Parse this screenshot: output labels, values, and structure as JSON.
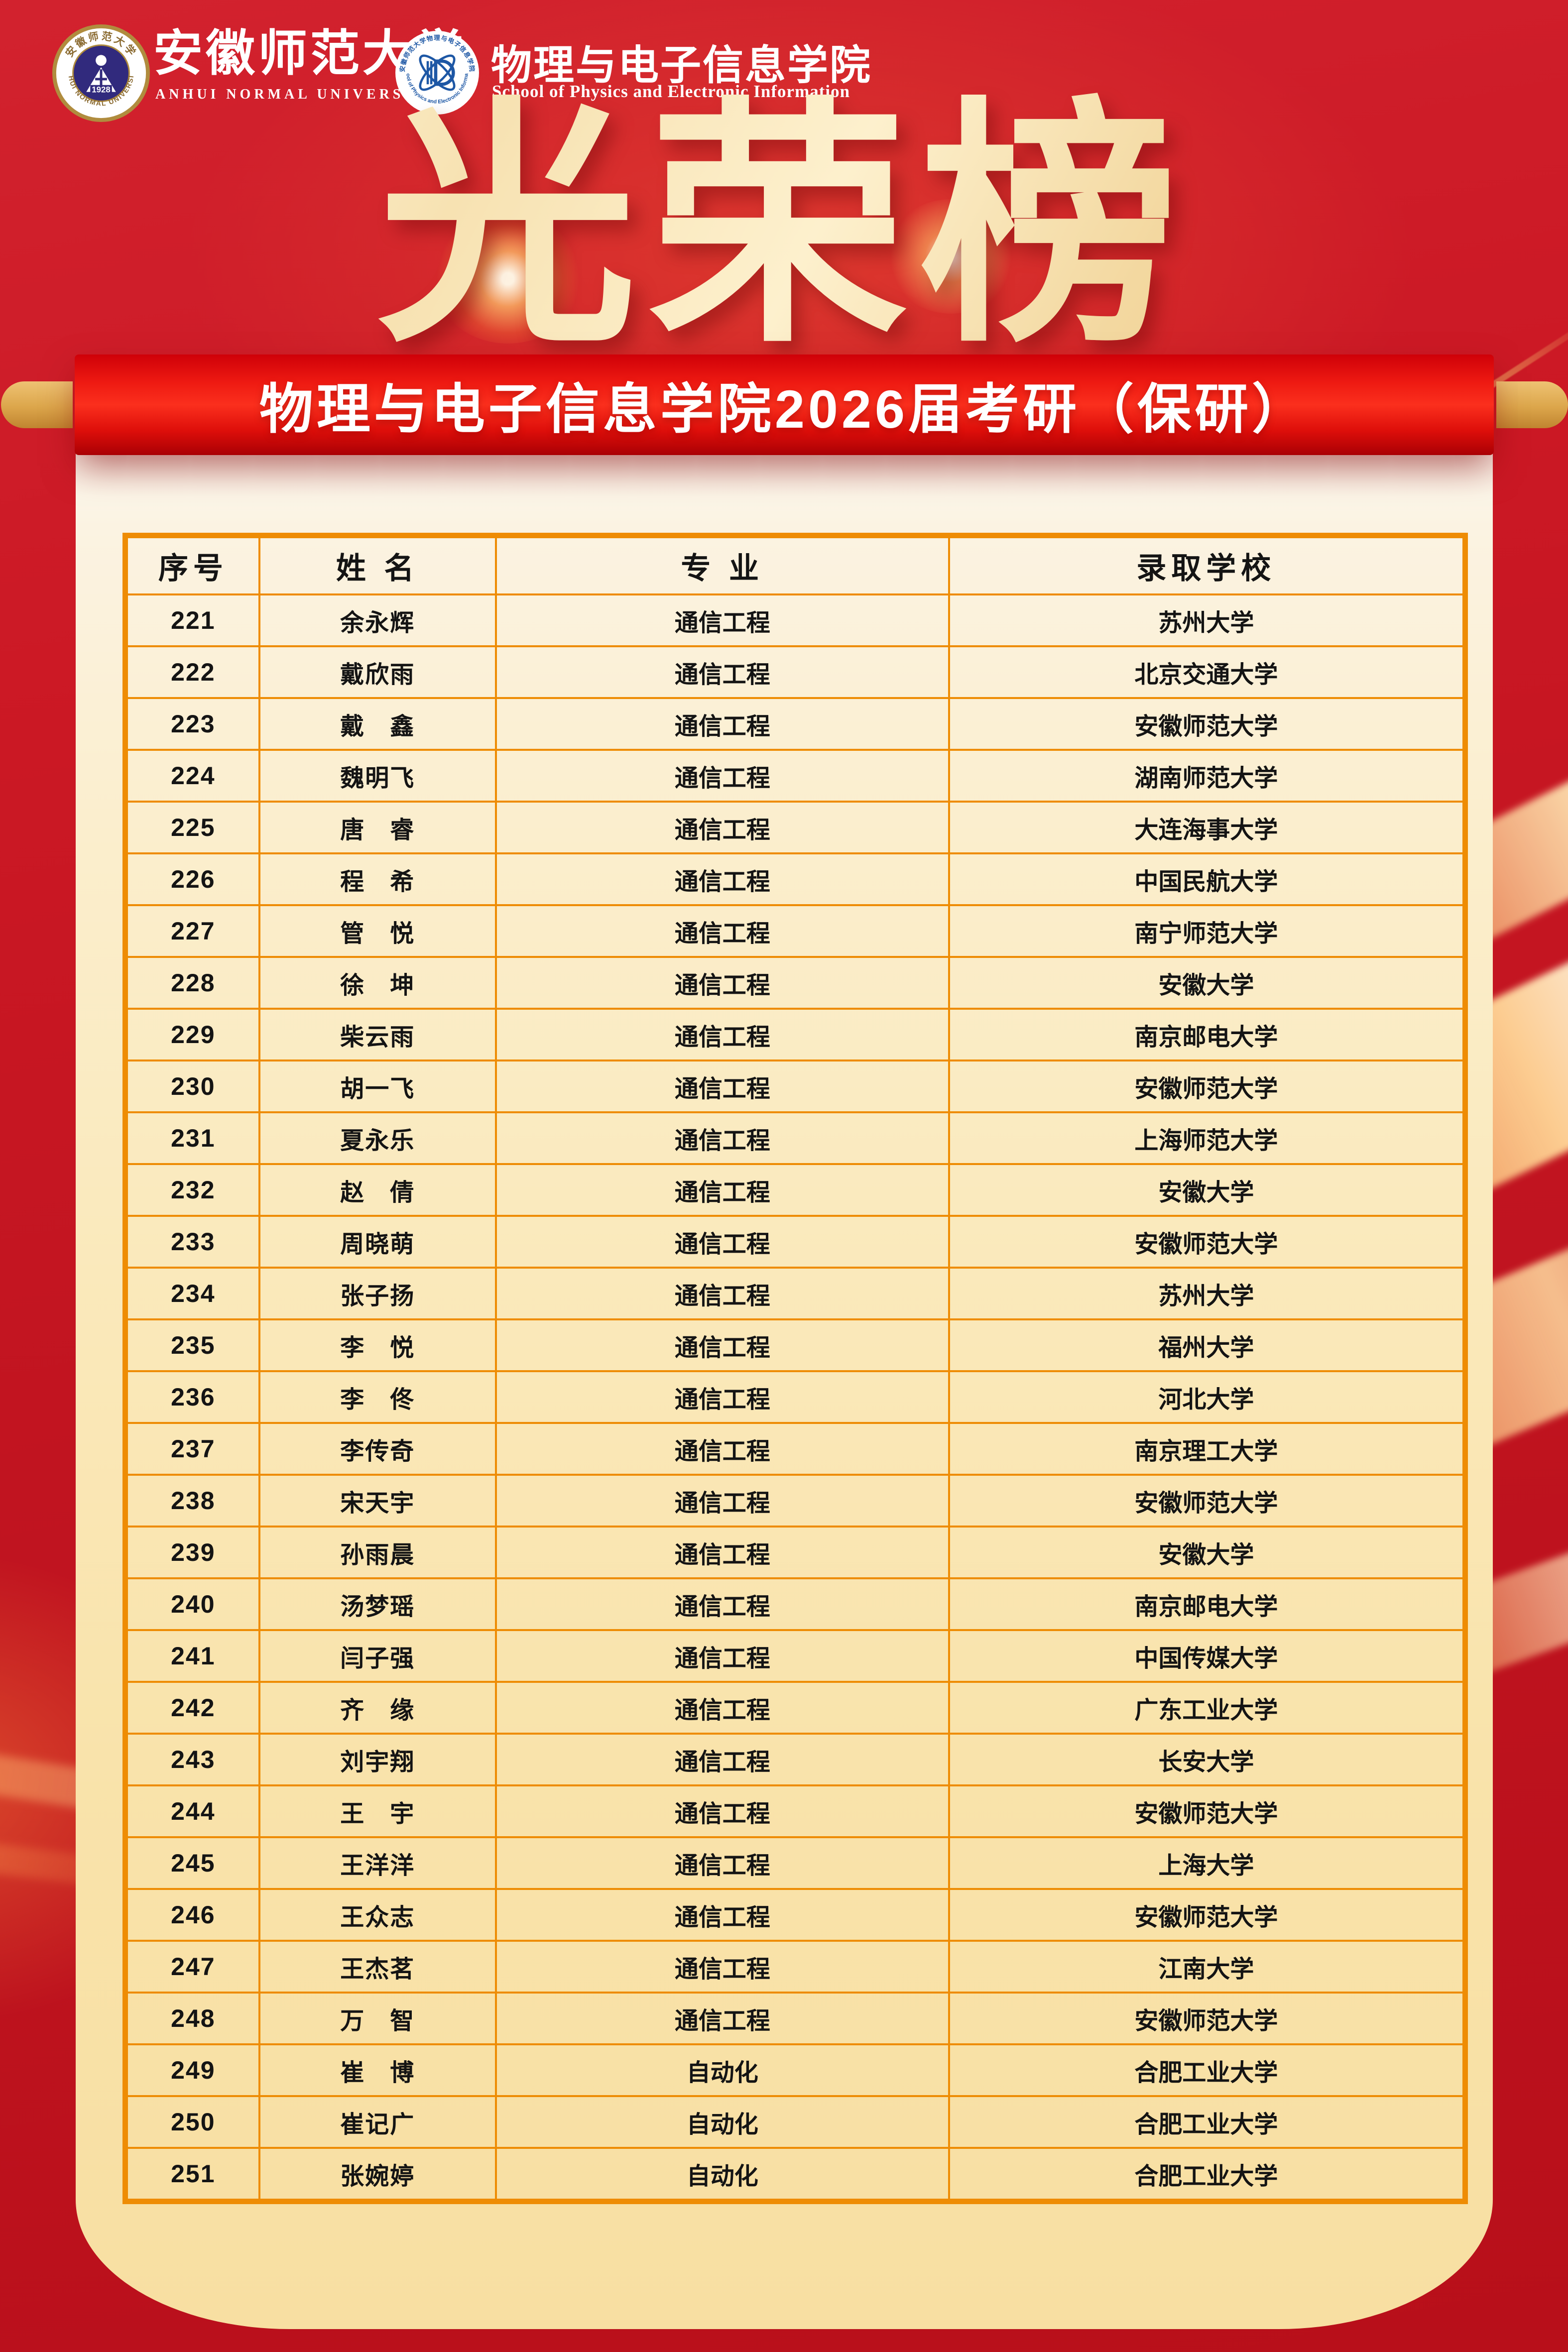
{
  "header": {
    "university_seal": {
      "ring_top": "安徽师范大学",
      "ring_bottom": "ANHUI NORMAL UNIVERSITY",
      "year": "1928"
    },
    "university_name_cn": "安徽师范大学",
    "university_name_en": "ANHUI NORMAL UNIVERSITY",
    "college_logo": {
      "ring_top": "安徽师范大学物理与电子信息学院",
      "ring_bottom": "School of Physics and Electronic Information",
      "monogram": "P"
    },
    "college_name_cn": "物理与电子信息学院",
    "college_name_en": "School of Physics and Electronic Information"
  },
  "title": {
    "text": "光荣榜"
  },
  "banner": {
    "text": "物理与电子信息学院2026届考研（保研）"
  },
  "table": {
    "columns": [
      "序号",
      "姓 名",
      "专 业",
      "录取学校"
    ],
    "rows": [
      [
        "221",
        "余永辉",
        "通信工程",
        "苏州大学"
      ],
      [
        "222",
        "戴欣雨",
        "通信工程",
        "北京交通大学"
      ],
      [
        "223",
        "戴　鑫",
        "通信工程",
        "安徽师范大学"
      ],
      [
        "224",
        "魏明飞",
        "通信工程",
        "湖南师范大学"
      ],
      [
        "225",
        "唐　睿",
        "通信工程",
        "大连海事大学"
      ],
      [
        "226",
        "程　希",
        "通信工程",
        "中国民航大学"
      ],
      [
        "227",
        "管　悦",
        "通信工程",
        "南宁师范大学"
      ],
      [
        "228",
        "徐　坤",
        "通信工程",
        "安徽大学"
      ],
      [
        "229",
        "柴云雨",
        "通信工程",
        "南京邮电大学"
      ],
      [
        "230",
        "胡一飞",
        "通信工程",
        "安徽师范大学"
      ],
      [
        "231",
        "夏永乐",
        "通信工程",
        "上海师范大学"
      ],
      [
        "232",
        "赵　倩",
        "通信工程",
        "安徽大学"
      ],
      [
        "233",
        "周晓萌",
        "通信工程",
        "安徽师范大学"
      ],
      [
        "234",
        "张子扬",
        "通信工程",
        "苏州大学"
      ],
      [
        "235",
        "李　悦",
        "通信工程",
        "福州大学"
      ],
      [
        "236",
        "李　佟",
        "通信工程",
        "河北大学"
      ],
      [
        "237",
        "李传奇",
        "通信工程",
        "南京理工大学"
      ],
      [
        "238",
        "宋天宇",
        "通信工程",
        "安徽师范大学"
      ],
      [
        "239",
        "孙雨晨",
        "通信工程",
        "安徽大学"
      ],
      [
        "240",
        "汤梦瑶",
        "通信工程",
        "南京邮电大学"
      ],
      [
        "241",
        "闫子强",
        "通信工程",
        "中国传媒大学"
      ],
      [
        "242",
        "齐　缘",
        "通信工程",
        "广东工业大学"
      ],
      [
        "243",
        "刘宇翔",
        "通信工程",
        "长安大学"
      ],
      [
        "244",
        "王　宇",
        "通信工程",
        "安徽师范大学"
      ],
      [
        "245",
        "王洋洋",
        "通信工程",
        "上海大学"
      ],
      [
        "246",
        "王众志",
        "通信工程",
        "安徽师范大学"
      ],
      [
        "247",
        "王杰茗",
        "通信工程",
        "江南大学"
      ],
      [
        "248",
        "万　智",
        "通信工程",
        "安徽师范大学"
      ],
      [
        "249",
        "崔　博",
        "自动化",
        "合肥工业大学"
      ],
      [
        "250",
        "崔记广",
        "自动化",
        "合肥工业大学"
      ],
      [
        "251",
        "张婉婷",
        "自动化",
        "合肥工业大学"
      ]
    ]
  },
  "colors": {
    "background_red": "#c11420",
    "banner_red": "#fb2f1d",
    "title_gold": "#f6e0b0",
    "scroll_nub_gold": "#dca64b",
    "panel_cream_top": "#fdfbf6",
    "panel_cream_bottom": "#f8dfa2",
    "table_border_orange": "#ee8c04",
    "table_text": "#141414",
    "seal_gold": "#b08c3e",
    "seal_navy": "#312a7d",
    "college_blue": "#1d57a5"
  }
}
